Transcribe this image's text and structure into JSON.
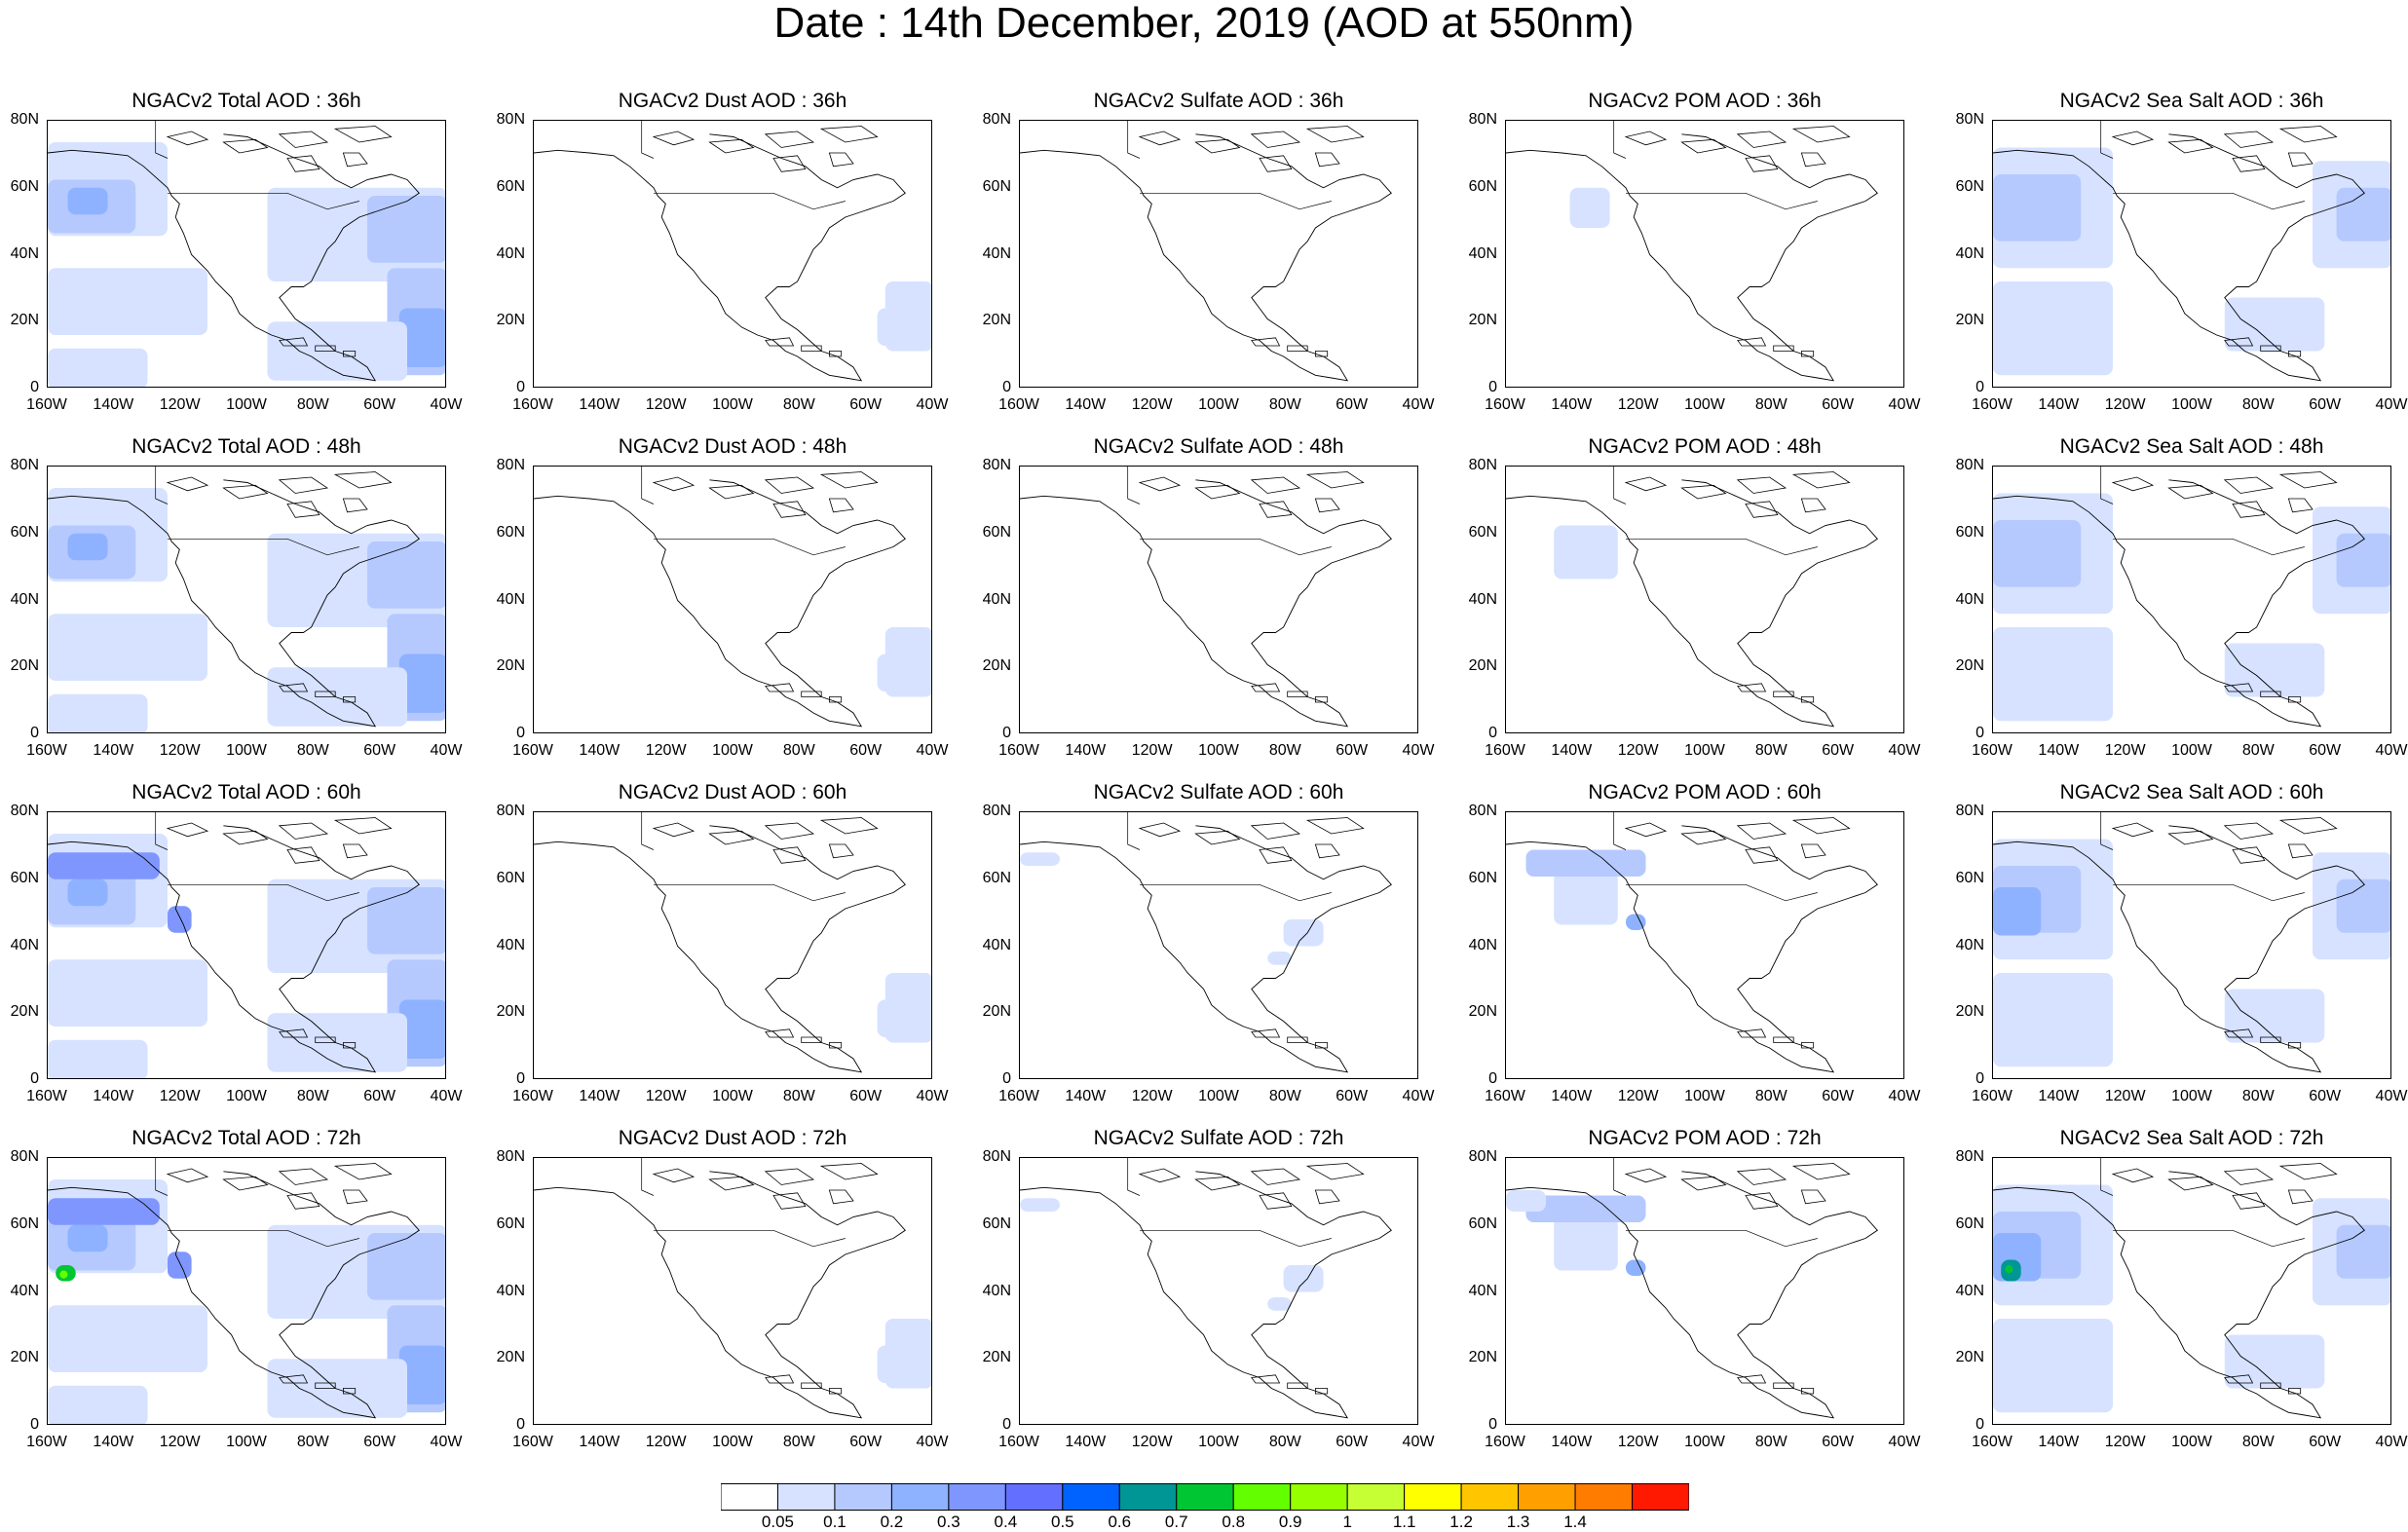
{
  "title": "Date : 14th December, 2019 (AOD at 550nm)",
  "panels": [
    [
      "NGACv2 Total AOD : 36h",
      "NGACv2 Dust AOD : 36h",
      "NGACv2 Sulfate AOD : 36h",
      "NGACv2 POM AOD : 36h",
      "NGACv2 Sea Salt AOD : 36h"
    ],
    [
      "NGACv2 Total AOD : 48h",
      "NGACv2 Dust AOD : 48h",
      "NGACv2 Sulfate AOD : 48h",
      "NGACv2 POM AOD : 48h",
      "NGACv2 Sea Salt AOD : 48h"
    ],
    [
      "NGACv2 Total AOD : 60h",
      "NGACv2 Dust AOD : 60h",
      "NGACv2 Sulfate AOD : 60h",
      "NGACv2 POM AOD : 60h",
      "NGACv2 Sea Salt AOD : 60h"
    ],
    [
      "NGACv2 Total AOD : 72h",
      "NGACv2 Dust AOD : 72h",
      "NGACv2 Sulfate AOD : 72h",
      "NGACv2 POM AOD : 72h",
      "NGACv2 Sea Salt  AOD : 72h"
    ]
  ],
  "lat_ticks": [
    "80N",
    "60N",
    "40N",
    "20N",
    "0"
  ],
  "lon_ticks": [
    "160W",
    "140W",
    "120W",
    "100W",
    "80W",
    "60W",
    "40W"
  ],
  "colorbar": {
    "labels": [
      "0.05",
      "0.1",
      "0.2",
      "0.3",
      "0.4",
      "0.5",
      "0.6",
      "0.7",
      "0.8",
      "0.9",
      "1",
      "1.1",
      "1.2",
      "1.3",
      "1.4"
    ],
    "colors": [
      "#ffffff",
      "#d6e2ff",
      "#b5c9ff",
      "#8eb2ff",
      "#7f96ff",
      "#6370ff",
      "#0063ff",
      "#009696",
      "#00c633",
      "#63ff00",
      "#96ff00",
      "#c6ff33",
      "#ffff00",
      "#ffc600",
      "#ffa000",
      "#ff7c00",
      "#ff1900"
    ]
  },
  "chart_data": {
    "type": "heatmap",
    "x_range": [
      "160W",
      "40W"
    ],
    "y_range": [
      "0",
      "80N"
    ],
    "field": "AOD at 550nm",
    "rows": [
      "36h",
      "48h",
      "60h",
      "72h"
    ],
    "columns": [
      "Total",
      "Dust",
      "Sulfate",
      "POM",
      "Sea Salt"
    ]
  }
}
